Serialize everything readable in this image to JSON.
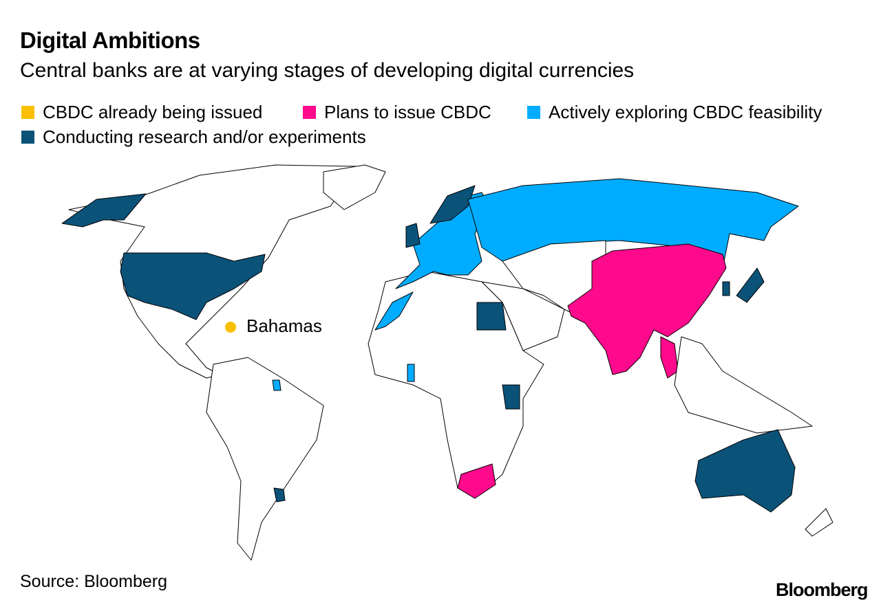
{
  "header": {
    "title": "Digital Ambitions",
    "subtitle": "Central banks are at varying stages of developing digital currencies"
  },
  "legend": [
    {
      "label": "CBDC already being issued",
      "color": "#f9bf00"
    },
    {
      "label": "Plans to issue CBDC",
      "color": "#ff0a8c"
    },
    {
      "label": "Actively exploring CBDC feasibility",
      "color": "#00acff"
    },
    {
      "label": "Conducting research and/or experiments",
      "color": "#0b5279"
    }
  ],
  "annotations": [
    {
      "label": "Bahamas"
    }
  ],
  "footer": {
    "source": "Source: Bloomberg",
    "logo": "Bloomberg"
  }
}
